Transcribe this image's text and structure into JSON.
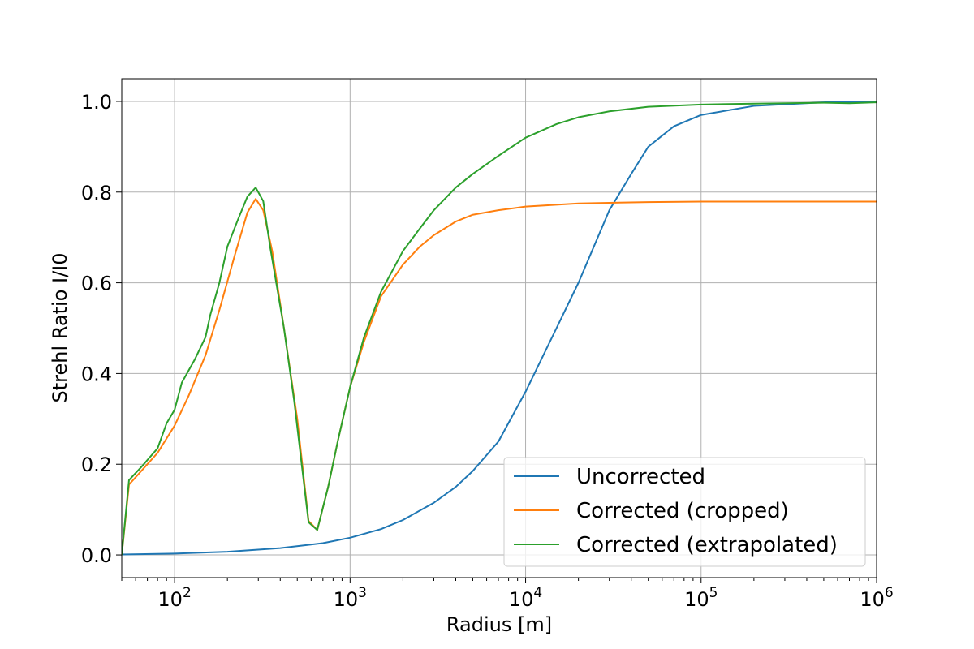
{
  "chart_data": {
    "type": "line",
    "xlabel": "Radius [m]",
    "ylabel": "Strehl Ratio I/I0",
    "xscale": "log",
    "xlim": [
      50,
      1000000
    ],
    "ylim": [
      -0.05,
      1.05
    ],
    "grid": true,
    "legend_position": "lower-right",
    "xticks": [
      {
        "base": "10",
        "exp": "2",
        "value": 100
      },
      {
        "base": "10",
        "exp": "3",
        "value": 1000
      },
      {
        "base": "10",
        "exp": "4",
        "value": 10000
      },
      {
        "base": "10",
        "exp": "5",
        "value": 100000
      },
      {
        "base": "10",
        "exp": "6",
        "value": 1000000
      }
    ],
    "yticks": [
      {
        "label": "0.0",
        "value": 0.0
      },
      {
        "label": "0.2",
        "value": 0.2
      },
      {
        "label": "0.4",
        "value": 0.4
      },
      {
        "label": "0.6",
        "value": 0.6
      },
      {
        "label": "0.8",
        "value": 0.8
      },
      {
        "label": "1.0",
        "value": 1.0
      }
    ],
    "series": [
      {
        "name": "Uncorrected",
        "color": "#1f77b4",
        "points": [
          [
            50,
            0.001
          ],
          [
            100,
            0.003
          ],
          [
            200,
            0.007
          ],
          [
            400,
            0.015
          ],
          [
            700,
            0.026
          ],
          [
            1000,
            0.038
          ],
          [
            1500,
            0.057
          ],
          [
            2000,
            0.077
          ],
          [
            3000,
            0.115
          ],
          [
            4000,
            0.15
          ],
          [
            5000,
            0.185
          ],
          [
            7000,
            0.25
          ],
          [
            10000,
            0.36
          ],
          [
            15000,
            0.5
          ],
          [
            20000,
            0.6
          ],
          [
            30000,
            0.76
          ],
          [
            40000,
            0.84
          ],
          [
            50000,
            0.9
          ],
          [
            70000,
            0.945
          ],
          [
            100000,
            0.97
          ],
          [
            200000,
            0.99
          ],
          [
            500000,
            0.998
          ],
          [
            1000000,
            1.0
          ]
        ]
      },
      {
        "name": "Corrected (cropped)",
        "color": "#ff7f0e",
        "points": [
          [
            50,
            0.0
          ],
          [
            55,
            0.155
          ],
          [
            70,
            0.2
          ],
          [
            80,
            0.225
          ],
          [
            100,
            0.285
          ],
          [
            120,
            0.35
          ],
          [
            150,
            0.44
          ],
          [
            180,
            0.54
          ],
          [
            220,
            0.66
          ],
          [
            260,
            0.755
          ],
          [
            290,
            0.785
          ],
          [
            320,
            0.76
          ],
          [
            360,
            0.67
          ],
          [
            420,
            0.5
          ],
          [
            500,
            0.3
          ],
          [
            580,
            0.075
          ],
          [
            650,
            0.055
          ],
          [
            750,
            0.15
          ],
          [
            850,
            0.25
          ],
          [
            1000,
            0.37
          ],
          [
            1200,
            0.47
          ],
          [
            1500,
            0.57
          ],
          [
            2000,
            0.64
          ],
          [
            2500,
            0.68
          ],
          [
            3000,
            0.705
          ],
          [
            4000,
            0.735
          ],
          [
            5000,
            0.75
          ],
          [
            7000,
            0.76
          ],
          [
            10000,
            0.768
          ],
          [
            20000,
            0.775
          ],
          [
            50000,
            0.778
          ],
          [
            100000,
            0.779
          ],
          [
            1000000,
            0.779
          ]
        ]
      },
      {
        "name": "Corrected (extrapolated)",
        "color": "#2ca02c",
        "points": [
          [
            50,
            0.0
          ],
          [
            55,
            0.165
          ],
          [
            65,
            0.195
          ],
          [
            80,
            0.235
          ],
          [
            90,
            0.29
          ],
          [
            100,
            0.32
          ],
          [
            110,
            0.38
          ],
          [
            130,
            0.43
          ],
          [
            150,
            0.48
          ],
          [
            160,
            0.53
          ],
          [
            180,
            0.6
          ],
          [
            200,
            0.68
          ],
          [
            230,
            0.74
          ],
          [
            260,
            0.79
          ],
          [
            290,
            0.81
          ],
          [
            320,
            0.78
          ],
          [
            350,
            0.68
          ],
          [
            420,
            0.5
          ],
          [
            480,
            0.34
          ],
          [
            580,
            0.072
          ],
          [
            650,
            0.055
          ],
          [
            750,
            0.15
          ],
          [
            850,
            0.25
          ],
          [
            1000,
            0.37
          ],
          [
            1200,
            0.48
          ],
          [
            1500,
            0.58
          ],
          [
            2000,
            0.67
          ],
          [
            2500,
            0.72
          ],
          [
            3000,
            0.76
          ],
          [
            4000,
            0.81
          ],
          [
            5000,
            0.84
          ],
          [
            7000,
            0.88
          ],
          [
            10000,
            0.92
          ],
          [
            15000,
            0.95
          ],
          [
            20000,
            0.965
          ],
          [
            30000,
            0.978
          ],
          [
            50000,
            0.988
          ],
          [
            100000,
            0.993
          ],
          [
            200000,
            0.995
          ],
          [
            500000,
            0.997
          ],
          [
            700000,
            0.996
          ],
          [
            1000000,
            0.998
          ]
        ]
      }
    ]
  }
}
